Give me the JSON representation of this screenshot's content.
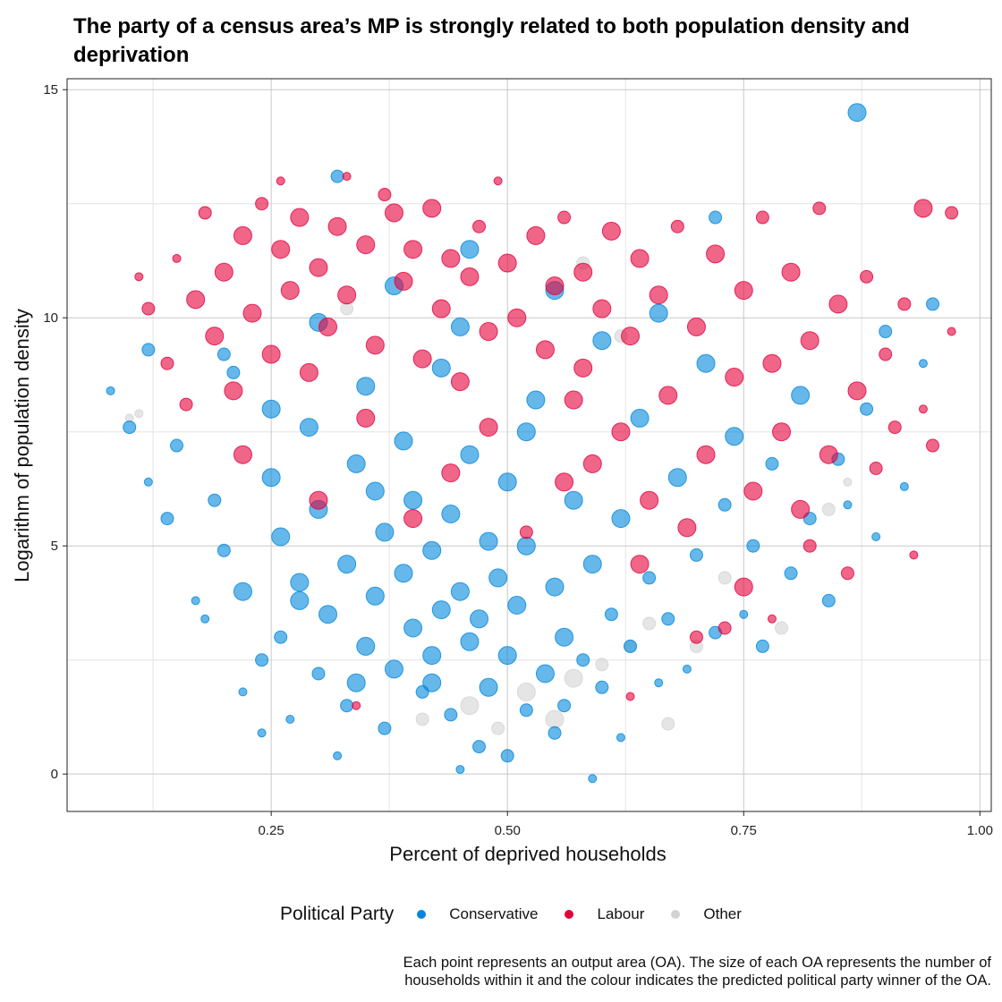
{
  "chart_data": {
    "type": "scatter",
    "title": "The party of a census area’s MP is strongly related to both population density and deprivation",
    "xlabel": "Percent of deprived households",
    "ylabel": "Logarithm of population density",
    "xlim": [
      0.034,
      1.012
    ],
    "ylim": [
      -0.82,
      15.24
    ],
    "xticks": [
      0.25,
      0.5,
      0.75,
      1.0
    ],
    "xtick_labels": [
      "0.25",
      "0.50",
      "0.75",
      "1.00"
    ],
    "yticks": [
      0,
      5,
      10,
      15
    ],
    "ytick_labels": [
      "0",
      "5",
      "10",
      "15"
    ],
    "grid": true,
    "legend_title": "Political Party",
    "legend_position": "bottom",
    "point_format": [
      "x",
      "y",
      "relative_size"
    ],
    "caption": [
      "Each point represents an output area (OA). The size of each OA represents the number of",
      "households within it and the colour indicates the predicted political party winner of the OA."
    ],
    "series": [
      {
        "name": "Other",
        "color": "#D3D3D3",
        "points": [
          [
            0.1,
            7.8,
            1
          ],
          [
            0.11,
            7.9,
            1
          ],
          [
            0.33,
            10.2,
            2
          ],
          [
            0.41,
            1.2,
            2
          ],
          [
            0.46,
            1.5,
            3
          ],
          [
            0.49,
            1.0,
            2
          ],
          [
            0.52,
            1.8,
            3
          ],
          [
            0.55,
            1.2,
            3
          ],
          [
            0.57,
            2.1,
            3
          ],
          [
            0.6,
            2.4,
            2
          ],
          [
            0.62,
            9.6,
            2
          ],
          [
            0.63,
            2.8,
            2
          ],
          [
            0.65,
            3.3,
            2
          ],
          [
            0.67,
            1.1,
            2
          ],
          [
            0.7,
            2.8,
            2
          ],
          [
            0.73,
            4.3,
            2
          ],
          [
            0.79,
            3.2,
            2
          ],
          [
            0.84,
            5.8,
            2
          ],
          [
            0.86,
            6.4,
            1
          ],
          [
            0.58,
            11.2,
            2
          ]
        ]
      },
      {
        "name": "Conservative",
        "color": "#0087DC",
        "points": [
          [
            0.08,
            8.4,
            1
          ],
          [
            0.1,
            7.6,
            2
          ],
          [
            0.12,
            9.3,
            2
          ],
          [
            0.12,
            6.4,
            1
          ],
          [
            0.14,
            5.6,
            2
          ],
          [
            0.15,
            7.2,
            2
          ],
          [
            0.17,
            3.8,
            1
          ],
          [
            0.18,
            3.4,
            1
          ],
          [
            0.19,
            6.0,
            2
          ],
          [
            0.2,
            4.9,
            2
          ],
          [
            0.21,
            8.8,
            2
          ],
          [
            0.22,
            4.0,
            3
          ],
          [
            0.22,
            1.8,
            1
          ],
          [
            0.24,
            0.9,
            1
          ],
          [
            0.24,
            2.5,
            2
          ],
          [
            0.25,
            6.5,
            3
          ],
          [
            0.26,
            5.2,
            3
          ],
          [
            0.26,
            3.0,
            2
          ],
          [
            0.27,
            1.2,
            1
          ],
          [
            0.28,
            4.2,
            3
          ],
          [
            0.29,
            7.6,
            3
          ],
          [
            0.3,
            2.2,
            2
          ],
          [
            0.3,
            5.8,
            3
          ],
          [
            0.31,
            3.5,
            3
          ],
          [
            0.32,
            0.4,
            1
          ],
          [
            0.32,
            13.1,
            2
          ],
          [
            0.33,
            4.6,
            3
          ],
          [
            0.33,
            1.5,
            2
          ],
          [
            0.34,
            6.8,
            3
          ],
          [
            0.35,
            2.8,
            3
          ],
          [
            0.35,
            8.5,
            3
          ],
          [
            0.36,
            3.9,
            3
          ],
          [
            0.37,
            5.3,
            3
          ],
          [
            0.37,
            1.0,
            2
          ],
          [
            0.38,
            2.3,
            3
          ],
          [
            0.39,
            4.4,
            3
          ],
          [
            0.39,
            7.3,
            3
          ],
          [
            0.4,
            3.2,
            3
          ],
          [
            0.4,
            6.0,
            3
          ],
          [
            0.41,
            1.8,
            2
          ],
          [
            0.42,
            4.9,
            3
          ],
          [
            0.42,
            2.6,
            3
          ],
          [
            0.43,
            8.9,
            3
          ],
          [
            0.43,
            3.6,
            3
          ],
          [
            0.44,
            1.3,
            2
          ],
          [
            0.44,
            5.7,
            3
          ],
          [
            0.45,
            0.1,
            1
          ],
          [
            0.45,
            4.0,
            3
          ],
          [
            0.46,
            2.9,
            3
          ],
          [
            0.46,
            7.0,
            3
          ],
          [
            0.47,
            0.6,
            2
          ],
          [
            0.47,
            3.4,
            3
          ],
          [
            0.48,
            5.1,
            3
          ],
          [
            0.48,
            1.9,
            3
          ],
          [
            0.49,
            4.3,
            3
          ],
          [
            0.5,
            0.4,
            2
          ],
          [
            0.5,
            2.6,
            3
          ],
          [
            0.5,
            6.4,
            3
          ],
          [
            0.51,
            3.7,
            3
          ],
          [
            0.52,
            1.4,
            2
          ],
          [
            0.52,
            5.0,
            3
          ],
          [
            0.53,
            8.2,
            3
          ],
          [
            0.54,
            2.2,
            3
          ],
          [
            0.55,
            4.1,
            3
          ],
          [
            0.55,
            0.9,
            2
          ],
          [
            0.56,
            3.0,
            3
          ],
          [
            0.57,
            6.0,
            3
          ],
          [
            0.58,
            2.5,
            2
          ],
          [
            0.59,
            -0.1,
            1
          ],
          [
            0.59,
            4.6,
            3
          ],
          [
            0.6,
            1.9,
            2
          ],
          [
            0.61,
            3.5,
            2
          ],
          [
            0.62,
            0.8,
            1
          ],
          [
            0.62,
            5.6,
            3
          ],
          [
            0.63,
            2.8,
            2
          ],
          [
            0.64,
            7.8,
            3
          ],
          [
            0.65,
            4.3,
            2
          ],
          [
            0.66,
            2.0,
            1
          ],
          [
            0.67,
            3.4,
            2
          ],
          [
            0.68,
            6.5,
            3
          ],
          [
            0.69,
            2.3,
            1
          ],
          [
            0.7,
            4.8,
            2
          ],
          [
            0.71,
            9.0,
            3
          ],
          [
            0.72,
            3.1,
            2
          ],
          [
            0.73,
            5.9,
            2
          ],
          [
            0.74,
            7.4,
            3
          ],
          [
            0.75,
            3.5,
            1
          ],
          [
            0.76,
            5.0,
            2
          ],
          [
            0.77,
            2.8,
            2
          ],
          [
            0.78,
            6.8,
            2
          ],
          [
            0.8,
            4.4,
            2
          ],
          [
            0.81,
            8.3,
            3
          ],
          [
            0.82,
            5.6,
            2
          ],
          [
            0.84,
            3.8,
            2
          ],
          [
            0.85,
            6.9,
            2
          ],
          [
            0.86,
            5.9,
            1
          ],
          [
            0.87,
            14.5,
            3
          ],
          [
            0.88,
            8.0,
            2
          ],
          [
            0.89,
            5.2,
            1
          ],
          [
            0.9,
            9.7,
            2
          ],
          [
            0.92,
            6.3,
            1
          ],
          [
            0.94,
            9.0,
            1
          ],
          [
            0.95,
            10.3,
            2
          ],
          [
            0.6,
            9.5,
            3
          ],
          [
            0.45,
            9.8,
            3
          ],
          [
            0.3,
            9.9,
            3
          ],
          [
            0.2,
            9.2,
            2
          ],
          [
            0.72,
            12.2,
            2
          ],
          [
            0.46,
            11.5,
            3
          ],
          [
            0.38,
            10.7,
            3
          ],
          [
            0.55,
            10.6,
            3
          ],
          [
            0.66,
            10.1,
            3
          ],
          [
            0.25,
            8.0,
            3
          ],
          [
            0.52,
            7.5,
            3
          ],
          [
            0.36,
            6.2,
            3
          ],
          [
            0.28,
            3.8,
            3
          ],
          [
            0.42,
            2.0,
            3
          ],
          [
            0.56,
            1.5,
            2
          ],
          [
            0.34,
            2.0,
            3
          ]
        ]
      },
      {
        "name": "Labour",
        "color": "#E4003B",
        "points": [
          [
            0.11,
            10.9,
            1
          ],
          [
            0.12,
            10.2,
            2
          ],
          [
            0.14,
            9.0,
            2
          ],
          [
            0.15,
            11.3,
            1
          ],
          [
            0.16,
            8.1,
            2
          ],
          [
            0.17,
            10.4,
            3
          ],
          [
            0.18,
            12.3,
            2
          ],
          [
            0.19,
            9.6,
            3
          ],
          [
            0.2,
            11.0,
            3
          ],
          [
            0.21,
            8.4,
            3
          ],
          [
            0.22,
            11.8,
            3
          ],
          [
            0.23,
            10.1,
            3
          ],
          [
            0.24,
            12.5,
            2
          ],
          [
            0.25,
            9.2,
            3
          ],
          [
            0.26,
            11.5,
            3
          ],
          [
            0.26,
            13.0,
            1
          ],
          [
            0.27,
            10.6,
            3
          ],
          [
            0.28,
            12.2,
            3
          ],
          [
            0.29,
            8.8,
            3
          ],
          [
            0.3,
            11.1,
            3
          ],
          [
            0.31,
            9.8,
            3
          ],
          [
            0.32,
            12.0,
            3
          ],
          [
            0.33,
            13.1,
            1
          ],
          [
            0.33,
            10.5,
            3
          ],
          [
            0.34,
            1.5,
            1
          ],
          [
            0.35,
            11.6,
            3
          ],
          [
            0.36,
            9.4,
            3
          ],
          [
            0.37,
            12.7,
            2
          ],
          [
            0.38,
            12.3,
            3
          ],
          [
            0.39,
            10.8,
            3
          ],
          [
            0.4,
            11.5,
            3
          ],
          [
            0.41,
            9.1,
            3
          ],
          [
            0.42,
            12.4,
            3
          ],
          [
            0.43,
            10.2,
            3
          ],
          [
            0.44,
            11.3,
            3
          ],
          [
            0.45,
            8.6,
            3
          ],
          [
            0.46,
            10.9,
            3
          ],
          [
            0.47,
            12.0,
            2
          ],
          [
            0.48,
            9.7,
            3
          ],
          [
            0.49,
            13.0,
            1
          ],
          [
            0.5,
            11.2,
            3
          ],
          [
            0.51,
            10.0,
            3
          ],
          [
            0.52,
            5.3,
            2
          ],
          [
            0.53,
            11.8,
            3
          ],
          [
            0.54,
            9.3,
            3
          ],
          [
            0.55,
            10.7,
            3
          ],
          [
            0.56,
            12.2,
            2
          ],
          [
            0.57,
            8.2,
            3
          ],
          [
            0.58,
            11.0,
            3
          ],
          [
            0.59,
            6.8,
            3
          ],
          [
            0.6,
            10.2,
            3
          ],
          [
            0.61,
            11.9,
            3
          ],
          [
            0.62,
            7.5,
            3
          ],
          [
            0.63,
            9.6,
            3
          ],
          [
            0.63,
            1.7,
            1
          ],
          [
            0.64,
            11.3,
            3
          ],
          [
            0.65,
            6.0,
            3
          ],
          [
            0.66,
            10.5,
            3
          ],
          [
            0.67,
            8.3,
            3
          ],
          [
            0.68,
            12.0,
            2
          ],
          [
            0.69,
            5.4,
            3
          ],
          [
            0.7,
            9.8,
            3
          ],
          [
            0.71,
            7.0,
            3
          ],
          [
            0.72,
            11.4,
            3
          ],
          [
            0.73,
            3.2,
            2
          ],
          [
            0.74,
            8.7,
            3
          ],
          [
            0.75,
            10.6,
            3
          ],
          [
            0.76,
            6.2,
            3
          ],
          [
            0.77,
            12.2,
            2
          ],
          [
            0.78,
            9.0,
            3
          ],
          [
            0.78,
            3.4,
            1
          ],
          [
            0.79,
            7.5,
            3
          ],
          [
            0.8,
            11.0,
            3
          ],
          [
            0.81,
            5.8,
            3
          ],
          [
            0.82,
            9.5,
            3
          ],
          [
            0.83,
            12.4,
            2
          ],
          [
            0.84,
            7.0,
            3
          ],
          [
            0.85,
            10.3,
            3
          ],
          [
            0.86,
            4.4,
            2
          ],
          [
            0.87,
            8.4,
            3
          ],
          [
            0.88,
            10.9,
            2
          ],
          [
            0.89,
            6.7,
            2
          ],
          [
            0.9,
            9.2,
            2
          ],
          [
            0.91,
            7.6,
            2
          ],
          [
            0.92,
            10.3,
            2
          ],
          [
            0.93,
            4.8,
            1
          ],
          [
            0.94,
            8.0,
            1
          ],
          [
            0.95,
            7.2,
            2
          ],
          [
            0.94,
            12.4,
            3
          ],
          [
            0.97,
            12.3,
            2
          ],
          [
            0.97,
            9.7,
            1
          ],
          [
            0.22,
            7.0,
            3
          ],
          [
            0.3,
            6.0,
            3
          ],
          [
            0.4,
            5.6,
            3
          ],
          [
            0.48,
            7.6,
            3
          ],
          [
            0.56,
            6.4,
            3
          ],
          [
            0.64,
            4.6,
            3
          ],
          [
            0.7,
            3.0,
            2
          ],
          [
            0.75,
            4.1,
            3
          ],
          [
            0.82,
            5.0,
            2
          ],
          [
            0.35,
            7.8,
            3
          ],
          [
            0.44,
            6.6,
            3
          ],
          [
            0.58,
            8.9,
            3
          ]
        ]
      }
    ],
    "legend_order": [
      "Conservative",
      "Labour",
      "Other"
    ]
  }
}
